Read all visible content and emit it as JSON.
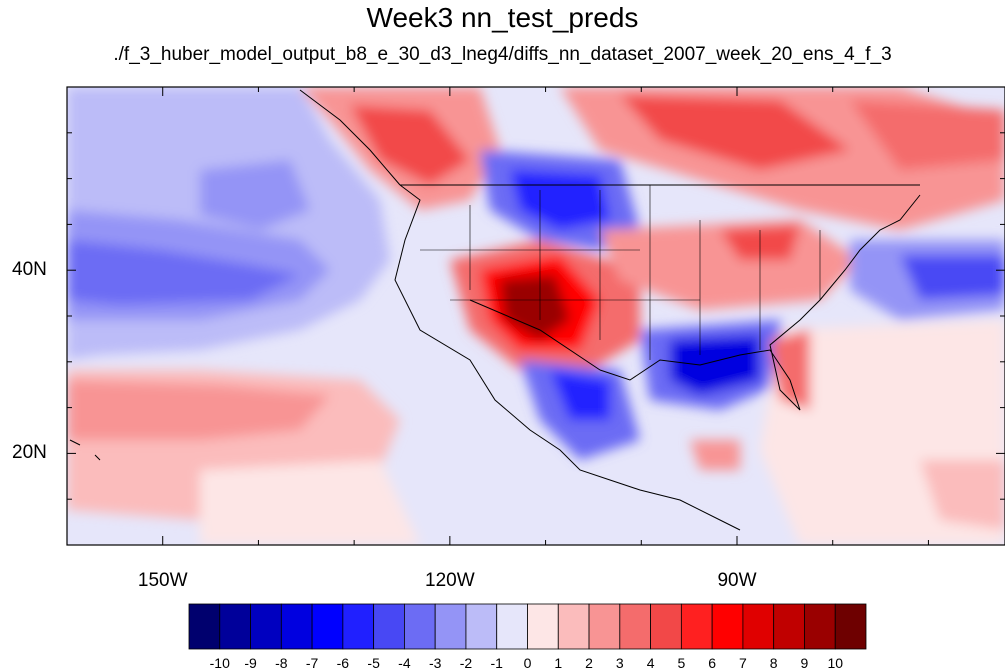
{
  "title": "Week3 nn_test_preds",
  "subtitle": "./f_3_huber_model_output_b8_e_30_d3_lneg4/diffs_nn_dataset_2007_week_20_ens_4_f_3",
  "map": {
    "lon_range": [
      -160,
      -62
    ],
    "lat_range": [
      10,
      60
    ],
    "lon_labels": [
      {
        "value": -150,
        "label": "150W"
      },
      {
        "value": -120,
        "label": "120W"
      },
      {
        "value": -90,
        "label": "90W"
      }
    ],
    "lat_labels": [
      {
        "value": 40,
        "label": "40N"
      },
      {
        "value": 20,
        "label": "20N"
      }
    ]
  },
  "colorbar": {
    "labels": [
      "-10",
      "-9",
      "-8",
      "-7",
      "-6",
      "-5",
      "-4",
      "-3",
      "-2",
      "-1",
      "0",
      "1",
      "2",
      "3",
      "4",
      "5",
      "6",
      "7",
      "8",
      "9",
      "10"
    ],
    "colors": [
      "#00006e",
      "#00009a",
      "#0000c0",
      "#0000e0",
      "#0000ff",
      "#2020ff",
      "#4848f4",
      "#6c6cf4",
      "#9494f6",
      "#bcbcf8",
      "#e6e6fa",
      "#fde6e6",
      "#fbbcbc",
      "#f89494",
      "#f46c6c",
      "#f24848",
      "#ff2020",
      "#ff0000",
      "#e00000",
      "#c00000",
      "#9a0000",
      "#6e0000"
    ]
  }
}
